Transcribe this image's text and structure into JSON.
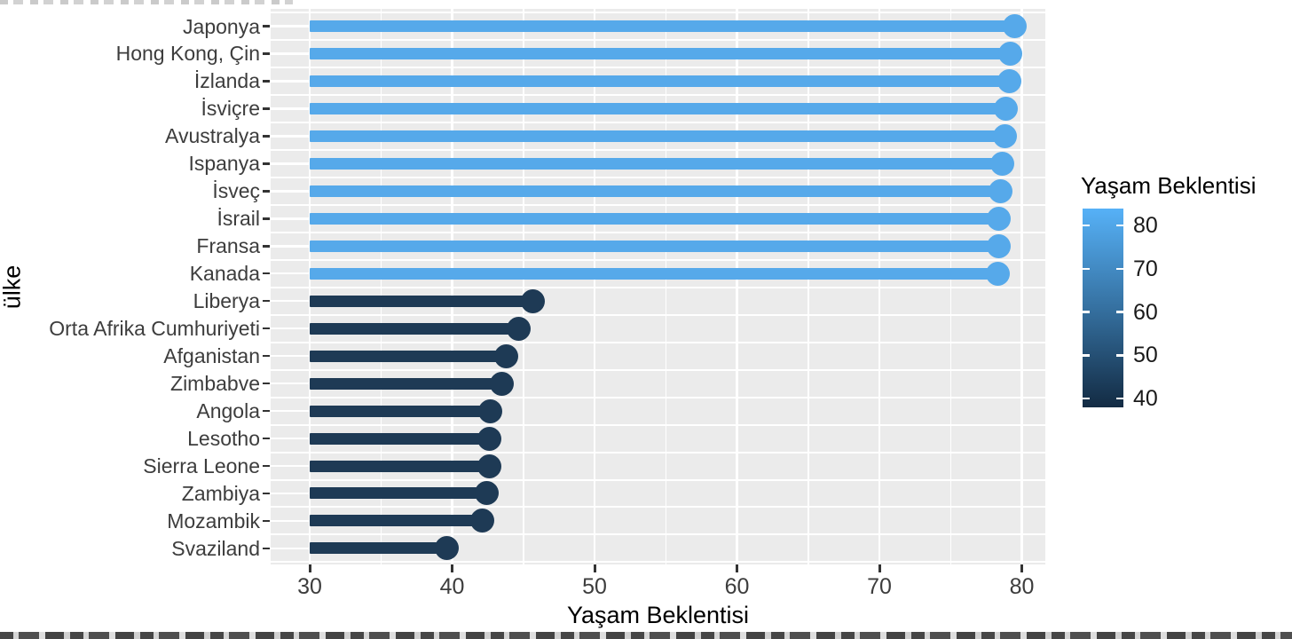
{
  "chart_data": {
    "type": "lollipop-bar",
    "orientation": "horizontal",
    "xlabel": "Yaşam Beklentisi",
    "ylabel": "ülke",
    "xlim": [
      27.5,
      82
    ],
    "x_major_ticks": [
      30,
      40,
      50,
      60,
      70,
      80
    ],
    "x_minor_ticks": [
      35,
      45,
      55,
      65,
      75
    ],
    "bar_start_value": 30,
    "panel_background": "#EBEBEB",
    "grid_color": "#ffffff",
    "categories": [
      "Japonya",
      "Hong Kong, Çin",
      "İzlanda",
      "İsviçre",
      "Avustralya",
      "Ispanya",
      "İsveç",
      "İsrail",
      "Fransa",
      "Kanada",
      "Liberya",
      "Orta Afrika Cumhuriyeti",
      "Afganistan",
      "Zimbabve",
      "Angola",
      "Lesotho",
      "Sierra Leone",
      "Zambiya",
      "Mozambik",
      "Svaziland"
    ],
    "values": [
      79.5,
      79.2,
      79.1,
      78.9,
      78.8,
      78.6,
      78.5,
      78.4,
      78.4,
      78.3,
      45.7,
      44.7,
      43.8,
      43.5,
      42.7,
      42.6,
      42.6,
      42.4,
      42.1,
      39.6
    ],
    "groups": [
      "high",
      "high",
      "high",
      "high",
      "high",
      "high",
      "high",
      "high",
      "high",
      "high",
      "low",
      "low",
      "low",
      "low",
      "low",
      "low",
      "low",
      "low",
      "low",
      "low"
    ],
    "colors": {
      "high": "#56A9EA",
      "low": "#1E3A55"
    },
    "legend": {
      "title": "Yaşam Beklentisi",
      "position": "right",
      "ticks": [
        80,
        70,
        60,
        50,
        40
      ],
      "gradient_high": "#56B1F7",
      "gradient_mid": "#346E9D",
      "gradient_low": "#132B43"
    }
  }
}
